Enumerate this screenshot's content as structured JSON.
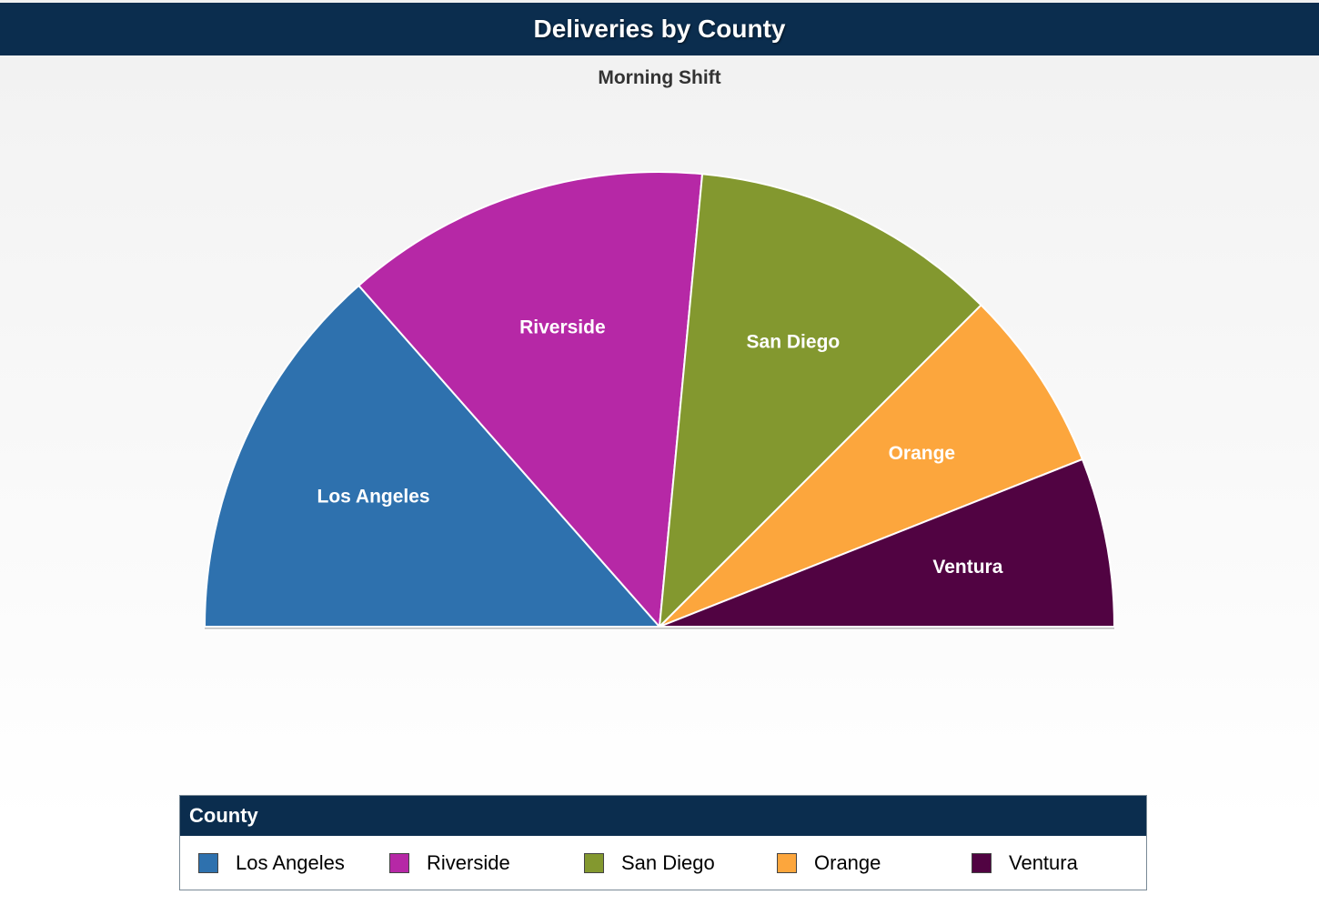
{
  "chart_data": {
    "type": "pie",
    "variant": "semi-circle",
    "title": "Deliveries by County",
    "subtitle": "Morning Shift",
    "legend": {
      "title": "County",
      "placement": "bottom"
    },
    "slices": [
      {
        "name": "Los Angeles",
        "value": 27,
        "color": "#2e71ae"
      },
      {
        "name": "Riverside",
        "value": 26,
        "color": "#b628a6"
      },
      {
        "name": "San Diego",
        "value": 22,
        "color": "#83982f"
      },
      {
        "name": "Orange",
        "value": 13,
        "color": "#fca63d"
      },
      {
        "name": "Ventura",
        "value": 12,
        "color": "#510342"
      }
    ]
  }
}
